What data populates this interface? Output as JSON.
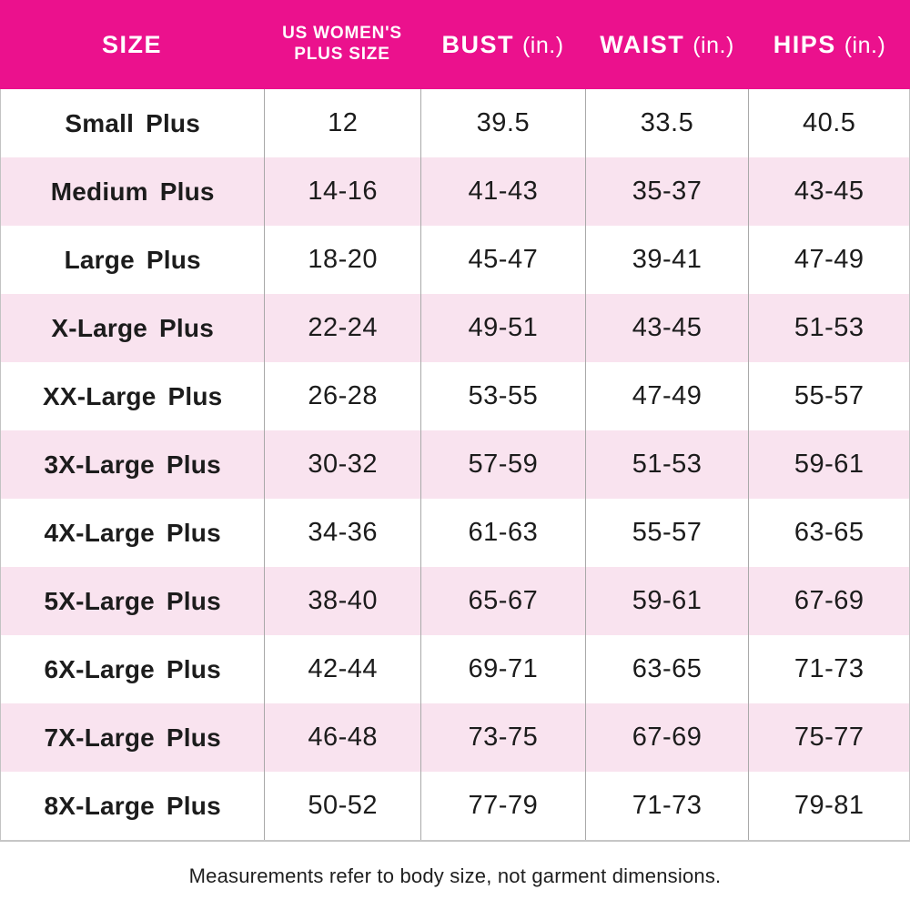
{
  "colors": {
    "header_bg": "#EB118D",
    "header_text": "#FFFFFF",
    "row_alt_bg": "#F9E3EF",
    "row_bg": "#FFFFFF",
    "divider": "#A9A9A9",
    "text": "#1C1C1C"
  },
  "chart_data": {
    "type": "table",
    "title": "",
    "columns": [
      {
        "label": "SIZE"
      },
      {
        "label": "US WOMEN'S",
        "label_line2": "PLUS SIZE"
      },
      {
        "label": "BUST",
        "unit": "(in.)"
      },
      {
        "label": "WAIST",
        "unit": "(in.)"
      },
      {
        "label": "HIPS",
        "unit": "(in.)"
      }
    ],
    "rows": [
      [
        "Small Plus",
        "12",
        "39.5",
        "33.5",
        "40.5"
      ],
      [
        "Medium Plus",
        "14-16",
        "41-43",
        "35-37",
        "43-45"
      ],
      [
        "Large Plus",
        "18-20",
        "45-47",
        "39-41",
        "47-49"
      ],
      [
        "X-Large Plus",
        "22-24",
        "49-51",
        "43-45",
        "51-53"
      ],
      [
        "XX-Large Plus",
        "26-28",
        "53-55",
        "47-49",
        "55-57"
      ],
      [
        "3X-Large Plus",
        "30-32",
        "57-59",
        "51-53",
        "59-61"
      ],
      [
        "4X-Large Plus",
        "34-36",
        "61-63",
        "55-57",
        "63-65"
      ],
      [
        "5X-Large Plus",
        "38-40",
        "65-67",
        "59-61",
        "67-69"
      ],
      [
        "6X-Large Plus",
        "42-44",
        "69-71",
        "63-65",
        "71-73"
      ],
      [
        "7X-Large Plus",
        "46-48",
        "73-75",
        "67-69",
        "75-77"
      ],
      [
        "8X-Large Plus",
        "50-52",
        "77-79",
        "71-73",
        "79-81"
      ]
    ],
    "layout": {
      "striped": true,
      "stripe_starts_on_row": 2,
      "grid": "vertical-only"
    }
  },
  "footer": {
    "note": "Measurements refer to body size, not garment dimensions."
  }
}
